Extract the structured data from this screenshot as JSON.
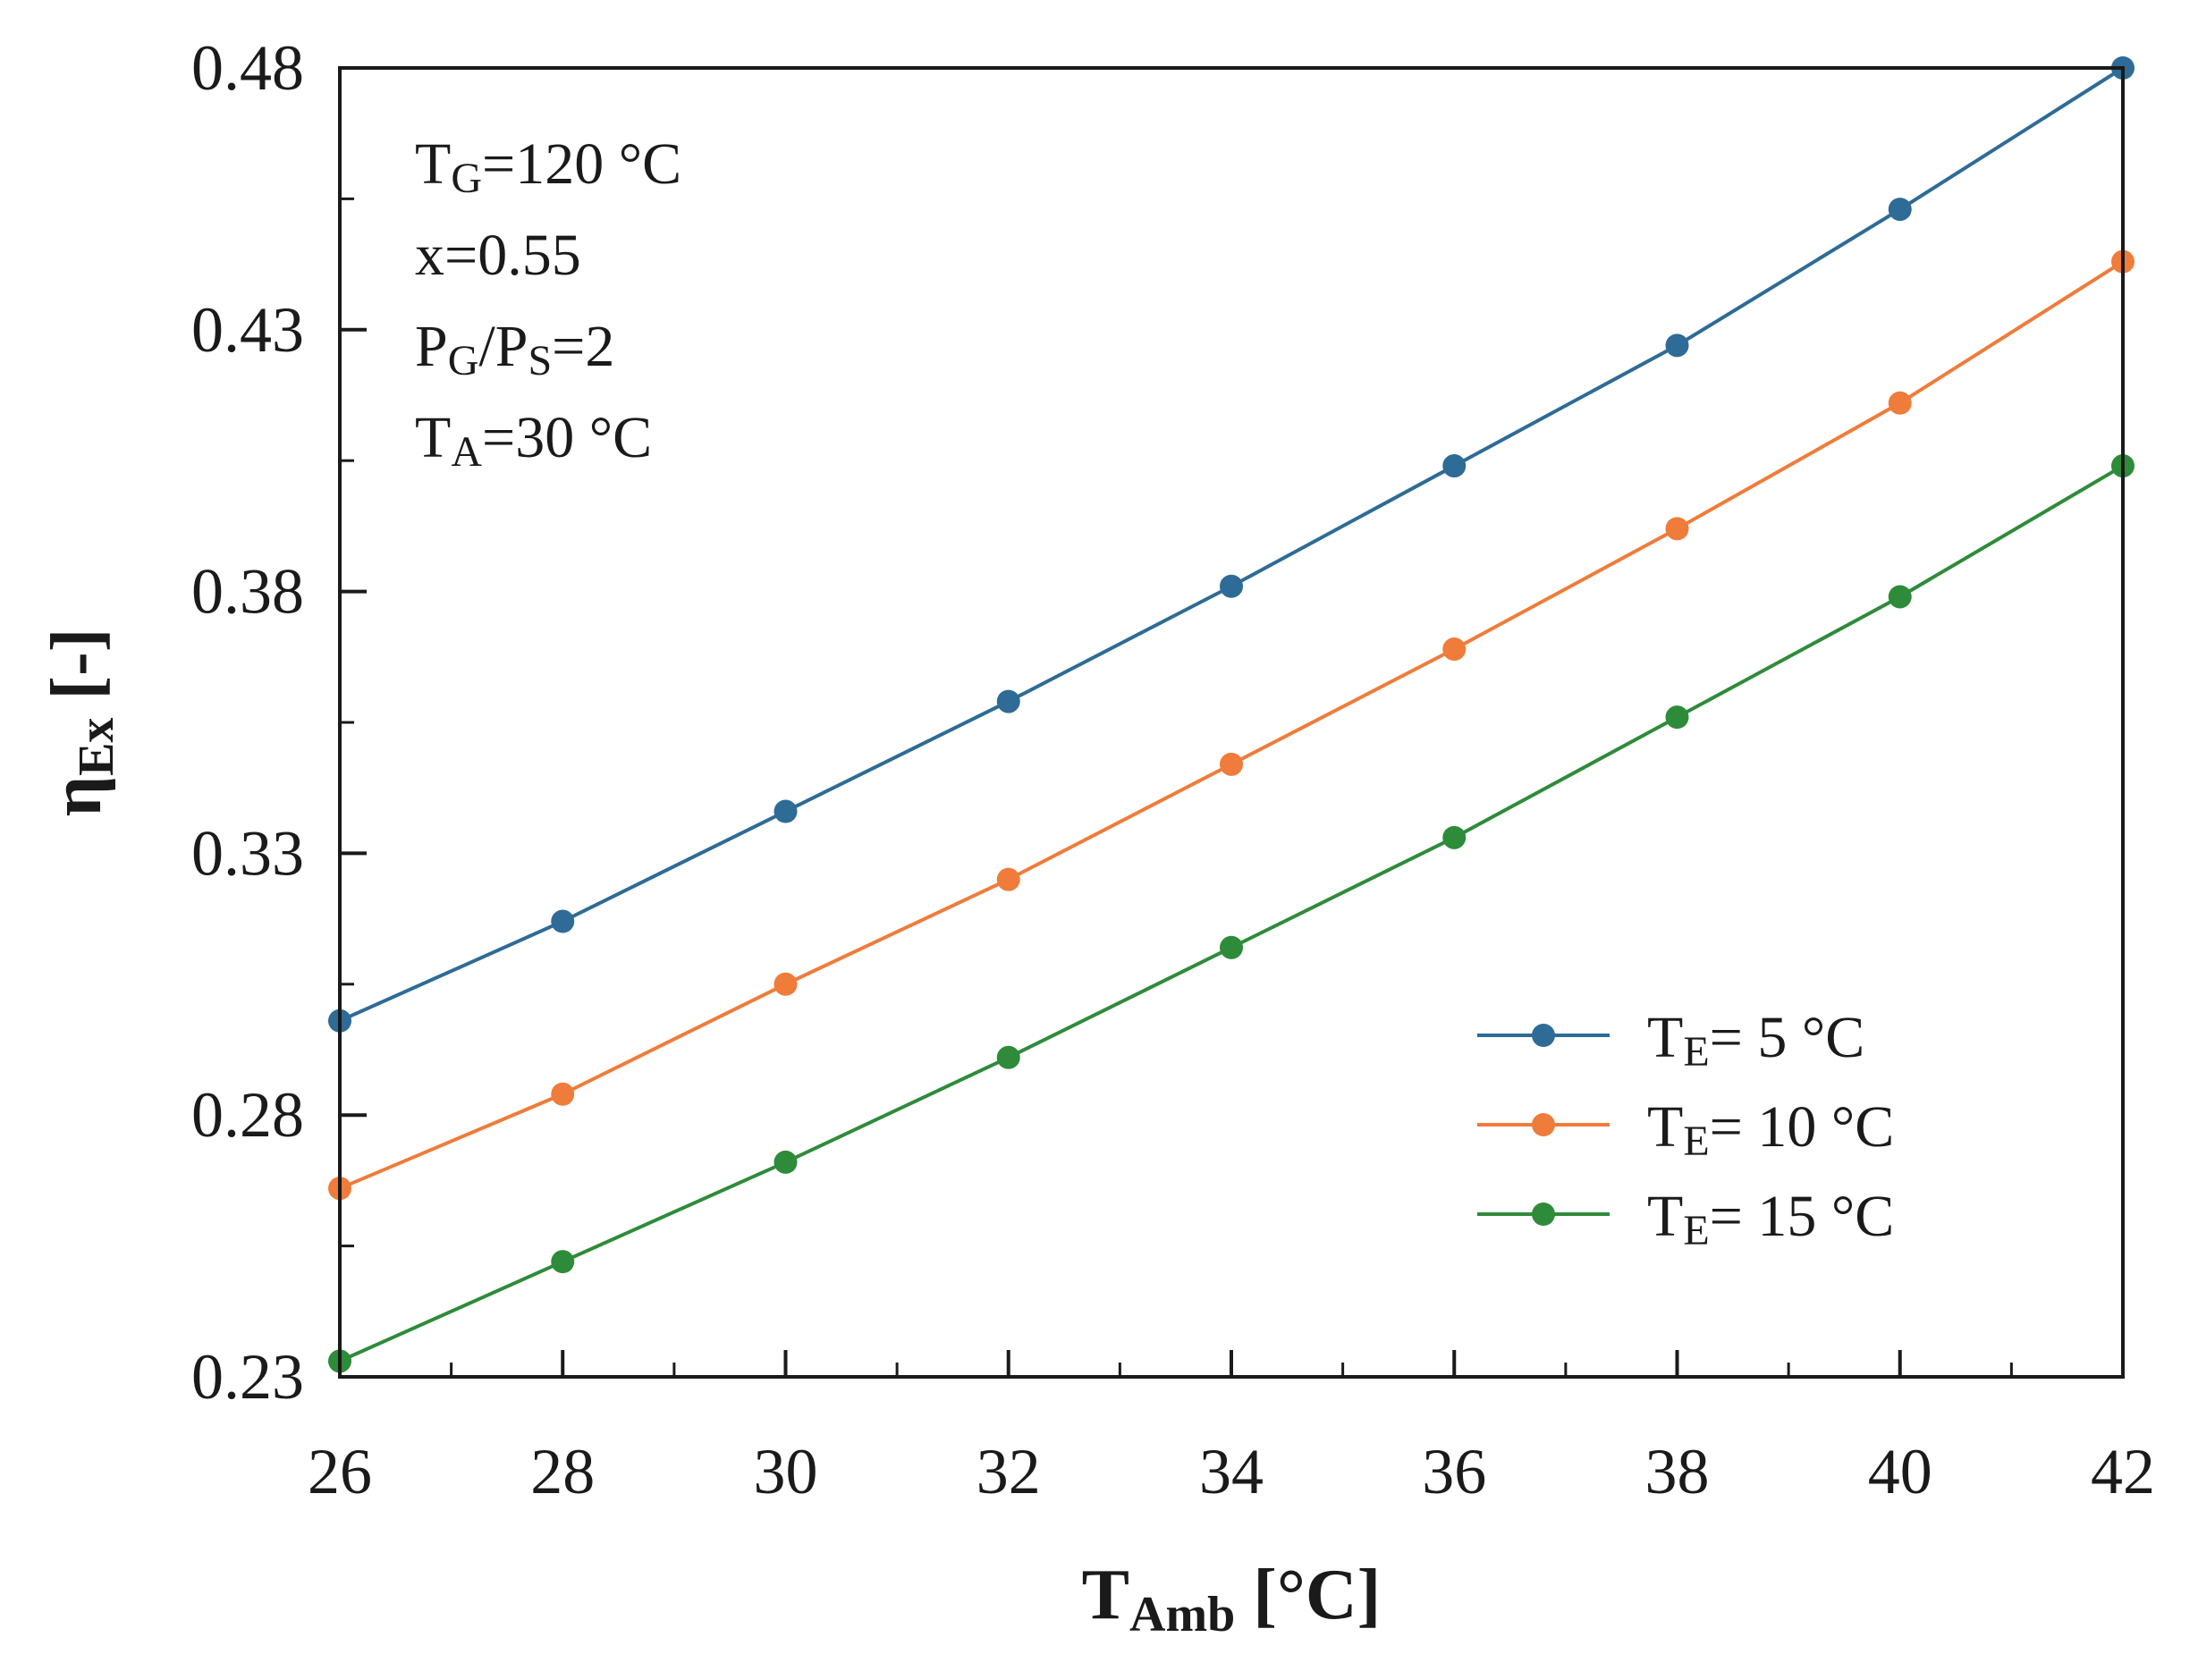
{
  "chart_data": {
    "type": "line",
    "title": "",
    "x": [
      26,
      28,
      30,
      32,
      34,
      36,
      38,
      40,
      42
    ],
    "xlim": [
      26,
      42
    ],
    "ylim": [
      0.23,
      0.48
    ],
    "xticks": [
      26,
      28,
      30,
      32,
      34,
      36,
      38,
      40,
      42
    ],
    "yticks": [
      0.23,
      0.28,
      0.33,
      0.38,
      0.43,
      0.48
    ],
    "xtick_labels": [
      "26",
      "28",
      "30",
      "32",
      "34",
      "36",
      "38",
      "40",
      "42"
    ],
    "ytick_labels": [
      "0.23",
      "0.28",
      "0.33",
      "0.38",
      "0.43",
      "0.48"
    ],
    "x_minor_step": 1,
    "y_minor_step": 0.025,
    "xlabel": {
      "main": "T",
      "sub": "Amb",
      "rest": " [°C]"
    },
    "ylabel": {
      "main": "η",
      "sub": "Ex",
      "rest": " [-]"
    },
    "grid": false,
    "legend_position": "bottom-right",
    "series": [
      {
        "name": "TE= 5 °C",
        "label_main": "T",
        "label_sub": "E",
        "label_rest": "= 5 °C",
        "color": "#2e6b96",
        "values": [
          0.298,
          0.317,
          0.338,
          0.359,
          0.381,
          0.404,
          0.427,
          0.453,
          0.48
        ]
      },
      {
        "name": "TE= 10 °C",
        "label_main": "T",
        "label_sub": "E",
        "label_rest": "= 10 °C",
        "color": "#ef7c3a",
        "values": [
          0.266,
          0.284,
          0.305,
          0.325,
          0.347,
          0.369,
          0.392,
          0.416,
          0.443
        ]
      },
      {
        "name": "TE= 15 °C",
        "label_main": "T",
        "label_sub": "E",
        "label_rest": "= 15 °C",
        "color": "#2e8b3a",
        "values": [
          0.233,
          0.252,
          0.271,
          0.291,
          0.312,
          0.333,
          0.356,
          0.379,
          0.404
        ]
      }
    ],
    "annotations": [
      {
        "main": "T",
        "sub": "G",
        "rest": "=120 °C"
      },
      {
        "main": "x=0.55",
        "sub": "",
        "rest": ""
      },
      {
        "main": "P",
        "sub": "G",
        "rest": "/P",
        "sub2": "S",
        "rest2": "=2"
      },
      {
        "main": "T",
        "sub": "A",
        "rest": "=30 °C"
      }
    ]
  }
}
